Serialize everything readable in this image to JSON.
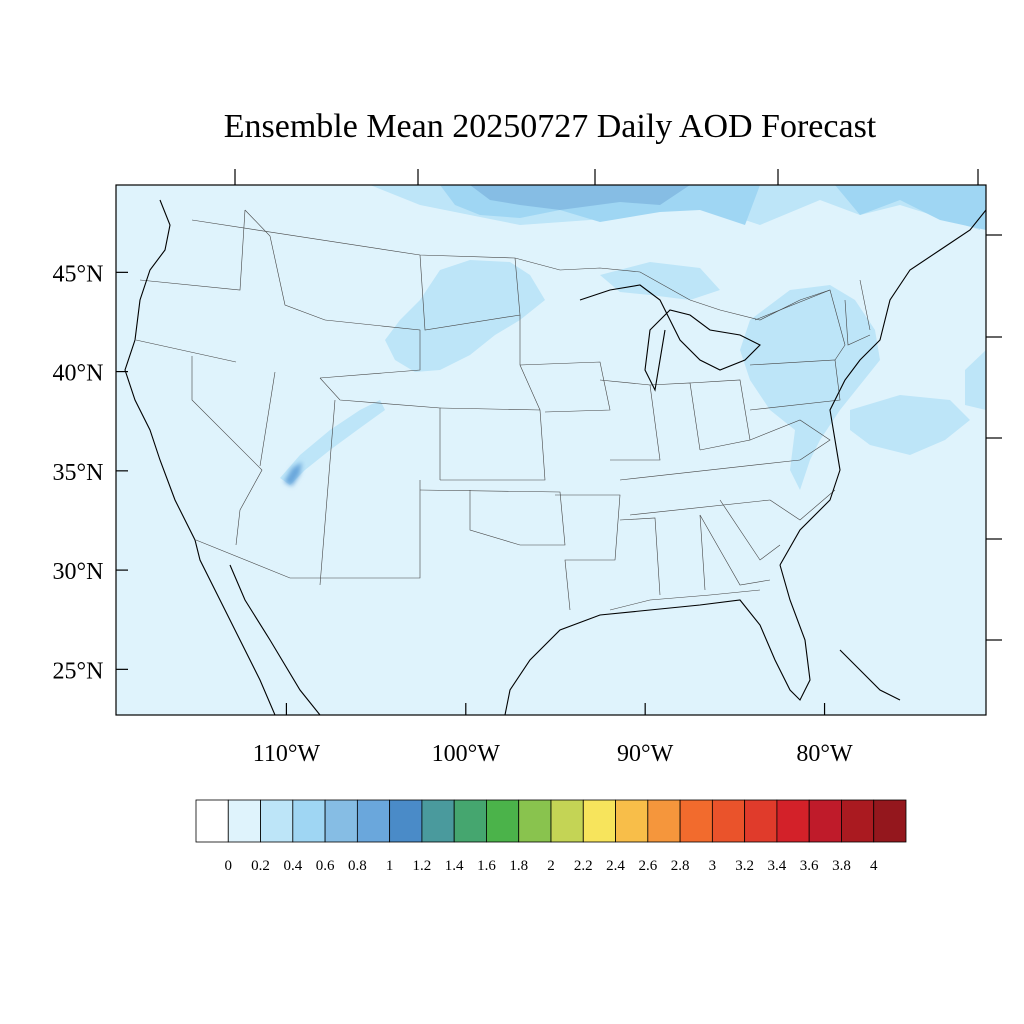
{
  "title": "Ensemble Mean 20250727 Daily AOD Forecast",
  "map": {
    "lat_labels": [
      "45°N",
      "40°N",
      "35°N",
      "30°N",
      "25°N"
    ],
    "lat_values": [
      45,
      40,
      35,
      30,
      25
    ],
    "lon_labels": [
      "110°W",
      "100°W",
      "90°W",
      "80°W"
    ],
    "lon_values": [
      -110,
      -100,
      -90,
      -80
    ],
    "extent": {
      "lon_min": -119.5,
      "lon_max": -71,
      "lat_min": 22.7,
      "lat_max": 49.4
    },
    "background_color": "#dff3fc",
    "regions": [
      {
        "name": "canada-border-high",
        "value": 0.4
      },
      {
        "name": "canada-border-core",
        "value": 0.8
      },
      {
        "name": "northern-plains",
        "value": 0.4
      },
      {
        "name": "northeast",
        "value": 0.4
      },
      {
        "name": "mid-atlantic",
        "value": 0.4
      },
      {
        "name": "atlantic-offshore",
        "value": 0.4
      },
      {
        "name": "four-corners-plume",
        "value": 0.4
      },
      {
        "name": "four-corners-core",
        "value": 0.8
      }
    ]
  },
  "colorbar": {
    "colors": [
      "#ffffff",
      "#dff3fc",
      "#bde5f8",
      "#9fd6f3",
      "#86bde4",
      "#6aa7dc",
      "#4a8bc8",
      "#4a9a9d",
      "#45a66f",
      "#4bb34a",
      "#89c34e",
      "#c4d455",
      "#f7e45c",
      "#f8be49",
      "#f5963c",
      "#f26b2d",
      "#ea532b",
      "#e03b2b",
      "#d32129",
      "#bf1b2a",
      "#aa1a20",
      "#94171d"
    ],
    "labels": [
      "0",
      "0.2",
      "0.4",
      "0.6",
      "0.8",
      "1",
      "1.2",
      "1.4",
      "1.6",
      "1.8",
      "2",
      "2.2",
      "2.4",
      "2.6",
      "2.8",
      "3",
      "3.2",
      "3.4",
      "3.6",
      "3.8",
      "4"
    ]
  }
}
